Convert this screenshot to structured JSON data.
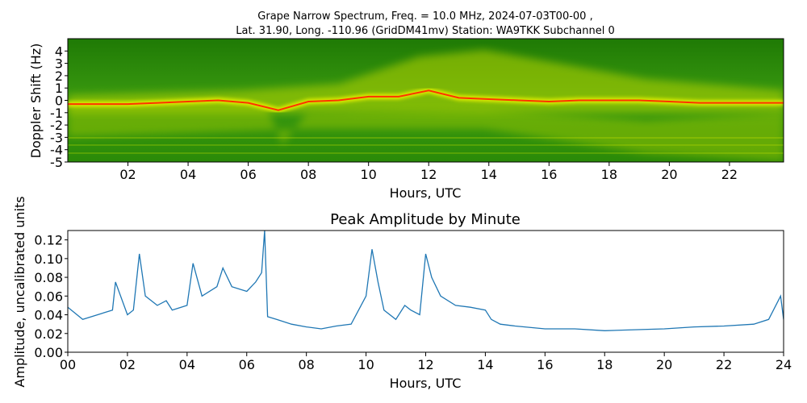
{
  "colors": {
    "spectrogram_bg": "#2f8f08",
    "spectrogram_band": "#d7e000",
    "spectrogram_peak": "#ff3300",
    "line": "#1f77b4"
  },
  "chart_data": [
    {
      "type": "heatmap",
      "title_line1": "Grape Narrow Spectrum, Freq. = 10.0 MHz, 2024-07-03T00-00 ,",
      "title_line2": "Lat.  31.90, Long. -110.96 (GridDM41mv) Station: WA9TKK Subchannel 0",
      "xlabel": "Hours, UTC",
      "ylabel": "Doppler Shift (Hz)",
      "xlim": [
        0,
        23.8
      ],
      "ylim": [
        -5,
        5
      ],
      "x_ticks": [
        2,
        4,
        6,
        8,
        10,
        12,
        14,
        16,
        18,
        20,
        22
      ],
      "x_tick_labels": [
        "02",
        "04",
        "06",
        "08",
        "10",
        "12",
        "14",
        "16",
        "18",
        "20",
        "22"
      ],
      "y_ticks": [
        4,
        3,
        2,
        1,
        0,
        -1,
        -2,
        -3,
        -4,
        -5
      ],
      "y_tick_labels": [
        "4",
        "3",
        "2",
        "1",
        "0",
        "-1",
        "-2",
        "-3",
        "-4",
        "-5"
      ],
      "carrier_trace": {
        "hours": [
          0,
          1,
          2,
          3,
          4,
          5,
          6,
          7,
          8,
          9,
          10,
          11,
          12,
          13,
          14,
          15,
          16,
          17,
          18,
          19,
          20,
          21,
          22,
          23,
          23.8
        ],
        "doppler_hz": [
          -0.3,
          -0.3,
          -0.3,
          -0.2,
          -0.1,
          0.0,
          -0.2,
          -0.8,
          -0.1,
          0.0,
          0.3,
          0.3,
          0.8,
          0.2,
          0.1,
          0.0,
          -0.1,
          0.0,
          0.0,
          0.0,
          -0.1,
          -0.2,
          -0.2,
          -0.2,
          -0.2
        ]
      }
    },
    {
      "type": "line",
      "title": "Peak Amplitude by Minute",
      "xlabel": "Hours, UTC",
      "ylabel": "Amplitude, uncalibrated units",
      "xlim": [
        0,
        24
      ],
      "ylim": [
        0,
        0.13
      ],
      "grid": false,
      "x_ticks": [
        0,
        2,
        4,
        6,
        8,
        10,
        12,
        14,
        16,
        18,
        20,
        22,
        24
      ],
      "x_tick_labels": [
        "00",
        "02",
        "04",
        "06",
        "08",
        "10",
        "12",
        "14",
        "16",
        "18",
        "20",
        "22",
        "24"
      ],
      "y_ticks": [
        0,
        0.02,
        0.04,
        0.06,
        0.08,
        0.1,
        0.12
      ],
      "y_tick_labels": [
        "0.00",
        "0.02",
        "0.04",
        "0.06",
        "0.08",
        "0.10",
        "0.12"
      ],
      "x": [
        0,
        0.5,
        1,
        1.5,
        1.6,
        2,
        2.2,
        2.4,
        2.6,
        3,
        3.3,
        3.5,
        4,
        4.2,
        4.5,
        5,
        5.2,
        5.5,
        6,
        6.3,
        6.5,
        6.6,
        6.7,
        7,
        7.5,
        8,
        8.5,
        9,
        9.5,
        10,
        10.2,
        10.4,
        10.6,
        11,
        11.3,
        11.5,
        11.8,
        12,
        12.2,
        12.5,
        13,
        13.5,
        14,
        14.2,
        14.5,
        15,
        16,
        17,
        18,
        19,
        20,
        21,
        22,
        23,
        23.5,
        23.9,
        24
      ],
      "y": [
        0.048,
        0.035,
        0.04,
        0.045,
        0.075,
        0.04,
        0.045,
        0.105,
        0.06,
        0.05,
        0.055,
        0.045,
        0.05,
        0.095,
        0.06,
        0.07,
        0.09,
        0.07,
        0.065,
        0.075,
        0.085,
        0.13,
        0.038,
        0.035,
        0.03,
        0.027,
        0.025,
        0.028,
        0.03,
        0.06,
        0.11,
        0.075,
        0.045,
        0.035,
        0.05,
        0.045,
        0.04,
        0.105,
        0.08,
        0.06,
        0.05,
        0.048,
        0.045,
        0.035,
        0.03,
        0.028,
        0.025,
        0.025,
        0.023,
        0.024,
        0.025,
        0.027,
        0.028,
        0.03,
        0.035,
        0.06,
        0.035
      ]
    }
  ]
}
